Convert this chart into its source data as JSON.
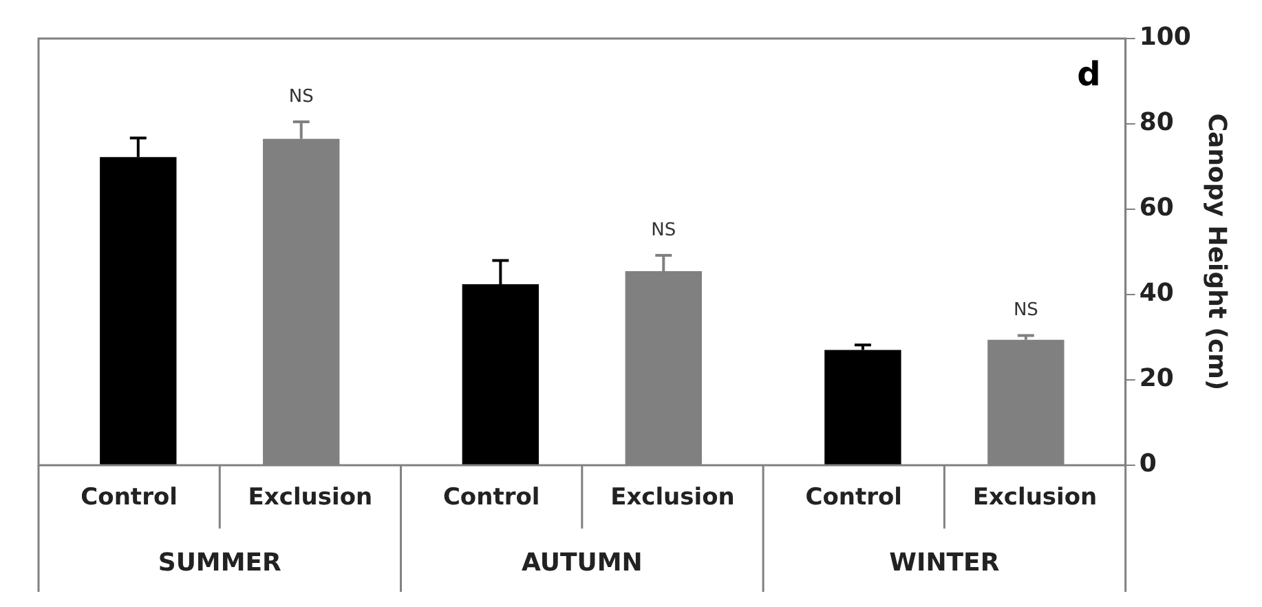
{
  "chart_data": {
    "type": "bar",
    "ylabel": "Canopy Height (cm)",
    "categories": [
      "SUMMER",
      "AUTUMN",
      "WINTER"
    ],
    "series": [
      {
        "name": "Control",
        "color": "#000000",
        "values": [
          72.2,
          42.4,
          27.0
        ],
        "errors": [
          4.5,
          5.6,
          1.2
        ]
      },
      {
        "name": "Exclusion",
        "color": "#808080",
        "values": [
          76.5,
          45.5,
          29.4
        ],
        "errors": [
          4.0,
          3.7,
          1.0
        ]
      }
    ],
    "ylim": [
      0,
      100
    ],
    "yticks": [
      0,
      20,
      40,
      60,
      80,
      100
    ],
    "grid": false,
    "legend": false,
    "annotations": [
      "d",
      "NS",
      "NS",
      "NS"
    ]
  }
}
